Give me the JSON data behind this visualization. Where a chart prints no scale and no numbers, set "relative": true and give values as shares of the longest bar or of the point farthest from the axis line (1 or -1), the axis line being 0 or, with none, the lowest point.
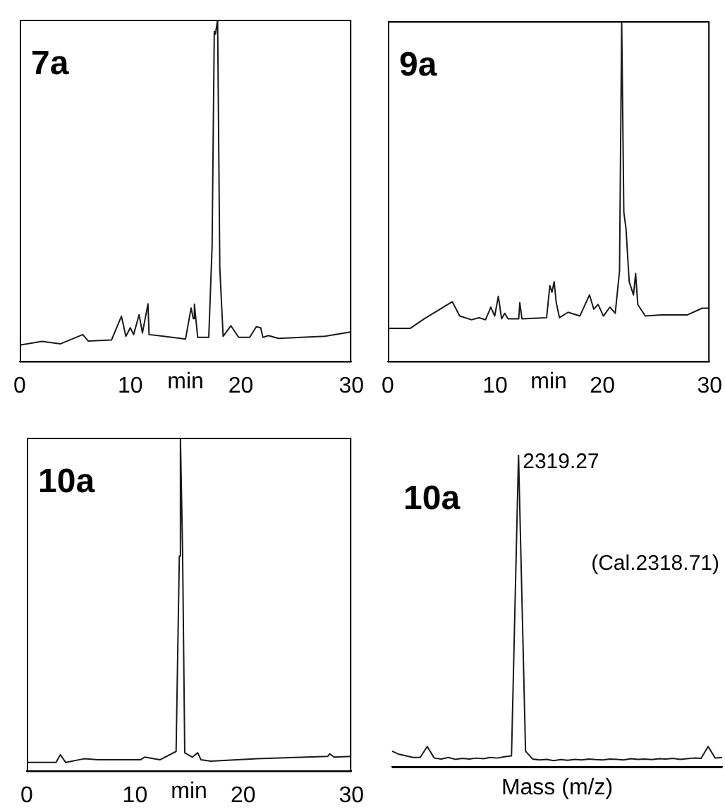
{
  "chart_data": [
    {
      "type": "line",
      "title": "7a",
      "xlabel": "min",
      "relative": true,
      "tick_labels": "x",
      "xlim": [
        0,
        30
      ],
      "xticks": [
        0,
        10,
        20,
        30
      ],
      "x": [
        0,
        2.0,
        3.7,
        5.7,
        6.2,
        8.3,
        9.2,
        9.6,
        10.0,
        10.3,
        10.8,
        11.1,
        11.6,
        11.7,
        12.5,
        15.0,
        15.5,
        15.7,
        15.8,
        16.1,
        17.1,
        17.4,
        17.6,
        17.7,
        17.9,
        18.1,
        18.4,
        19.1,
        19.8,
        20.8,
        21.4,
        21.8,
        22.0,
        22.5,
        23.4,
        27.6,
        30
      ],
      "series": [
        {
          "color": "#1a1a1a",
          "values": [
            0.047,
            0.058,
            0.051,
            0.078,
            0.059,
            0.062,
            0.132,
            0.073,
            0.098,
            0.078,
            0.136,
            0.083,
            0.168,
            0.078,
            0.075,
            0.065,
            0.156,
            0.125,
            0.167,
            0.07,
            0.07,
            0.335,
            0.966,
            0.958,
            1,
            0.273,
            0.073,
            0.104,
            0.07,
            0.07,
            0.101,
            0.098,
            0.07,
            0.075,
            0.067,
            0.073,
            0.086
          ]
        }
      ]
    },
    {
      "type": "line",
      "title": "9a",
      "xlabel": "min",
      "relative": true,
      "tick_labels": "x",
      "xlim": [
        0,
        30
      ],
      "xticks": [
        0,
        10,
        20,
        30
      ],
      "x": [
        0,
        2.1,
        3.4,
        6.0,
        6.7,
        7.8,
        8.5,
        9.1,
        9.6,
        9.96,
        10.3,
        10.6,
        10.9,
        11.2,
        12.2,
        12.3,
        12.5,
        14.8,
        15.1,
        15.3,
        15.5,
        15.7,
        16.0,
        16.8,
        17.9,
        18.8,
        19.2,
        19.6,
        20.1,
        20.7,
        21.2,
        21.6,
        21.8,
        22.0,
        22.2,
        22.5,
        22.9,
        23.1,
        23.3,
        24.0,
        25.5,
        27.9,
        29.3,
        30
      ],
      "series": [
        {
          "color": "#1a1a1a",
          "values": [
            0.097,
            0.097,
            0.125,
            0.175,
            0.133,
            0.122,
            0.128,
            0.122,
            0.159,
            0.133,
            0.191,
            0.125,
            0.141,
            0.125,
            0.125,
            0.172,
            0.125,
            0.128,
            0.222,
            0.203,
            0.234,
            0.172,
            0.128,
            0.144,
            0.133,
            0.195,
            0.153,
            0.167,
            0.133,
            0.159,
            0.141,
            0.266,
            1,
            0.438,
            0.391,
            0.234,
            0.195,
            0.258,
            0.167,
            0.133,
            0.136,
            0.136,
            0.156,
            0.156
          ]
        }
      ]
    },
    {
      "type": "line",
      "title": "10a",
      "xlabel": "min",
      "relative": true,
      "tick_labels": "x",
      "xlim": [
        0,
        30
      ],
      "xticks": [
        0,
        10,
        20,
        30
      ],
      "x": [
        0,
        2.7,
        3.1,
        3.6,
        5.3,
        6.6,
        10.5,
        10.9,
        12.3,
        13.8,
        14.1,
        14.2,
        14.4,
        14.6,
        15.3,
        15.8,
        16.1,
        17.0,
        21.3,
        27.8,
        28.0,
        28.4,
        30
      ],
      "series": [
        {
          "color": "#1a1a1a",
          "values": [
            0.025,
            0.025,
            0.048,
            0.025,
            0.036,
            0.033,
            0.033,
            0.041,
            0.033,
            0.058,
            0.645,
            1,
            0.659,
            0.054,
            0.041,
            0.054,
            0.033,
            0.029,
            0.036,
            0.043,
            0.051,
            0.041,
            0.043
          ]
        }
      ]
    },
    {
      "type": "line",
      "title": "10a",
      "xlabel": "Mass (m/z)",
      "relative": true,
      "tick_labels": false,
      "categories": [
        null,
        null,
        null,
        null,
        null,
        null,
        null,
        null,
        null,
        null,
        null,
        null,
        null,
        null,
        null,
        null,
        null,
        null,
        null,
        null,
        null,
        null,
        null,
        null,
        null,
        null,
        null,
        null,
        null,
        null,
        null,
        null,
        null,
        null,
        null,
        null,
        null,
        null,
        null,
        null,
        null,
        null,
        null,
        null,
        null,
        null,
        null,
        null
      ],
      "series": [
        {
          "color": "#1a1a1a",
          "values": [
            0.05,
            0.04,
            0.035,
            0.03,
            0.03,
            0.065,
            0.028,
            0.025,
            0.03,
            0.024,
            0.027,
            0.025,
            0.028,
            0.026,
            0.03,
            0.028,
            0.032,
            0.035,
            1,
            0.05,
            0.025,
            0.022,
            0.024,
            0.02,
            0.023,
            0.021,
            0.024,
            0.022,
            0.025,
            0.023,
            0.022,
            0.025,
            0.024,
            0.022,
            0.026,
            0.024,
            0.025,
            0.023,
            0.026,
            0.025,
            0.027,
            0.024,
            0.026,
            0.028,
            0.027,
            0.065,
            0.028,
            0.03
          ]
        }
      ],
      "annotations": [
        "2319.27",
        "(Cal.2318.71)"
      ]
    }
  ]
}
